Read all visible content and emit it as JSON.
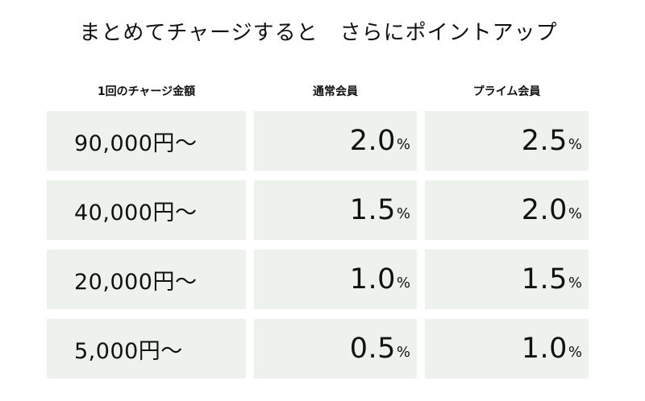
{
  "title": "まとめてチャージすると　さらにポイントアップ",
  "headers": {
    "amount": "1回のチャージ金額",
    "regular": "通常会員",
    "prime": "プライム会員"
  },
  "unit": "%",
  "rows": [
    {
      "amount": "90,000円〜",
      "regular": "2.0",
      "prime": "2.5"
    },
    {
      "amount": "40,000円〜",
      "regular": "1.5",
      "prime": "2.0"
    },
    {
      "amount": "20,000円〜",
      "regular": "1.0",
      "prime": "1.5"
    },
    {
      "amount": "5,000円〜",
      "regular": "0.5",
      "prime": "1.0"
    }
  ],
  "colors": {
    "cell_background": "#eef2ec",
    "text": "#111111"
  }
}
